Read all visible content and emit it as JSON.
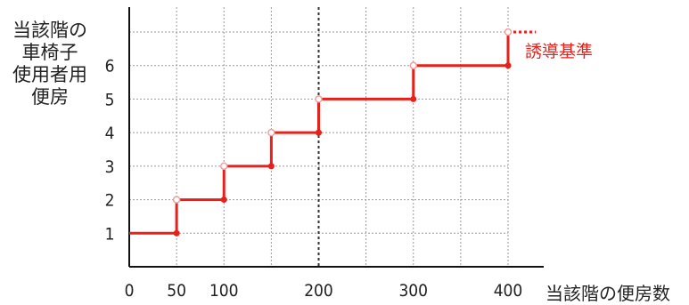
{
  "chart_data": {
    "type": "line",
    "ylabel_lines": [
      "当該階の",
      "車椅子",
      "使用者用",
      "便房"
    ],
    "xlabel": "当該階の便房数",
    "annotation": "誘導基準",
    "xticks": [
      0,
      50,
      100,
      200,
      300,
      400
    ],
    "xgrid": [
      0,
      50,
      100,
      150,
      200,
      250,
      300,
      350,
      400
    ],
    "yticks": [
      1,
      2,
      3,
      4,
      5,
      6
    ],
    "xlim": [
      0,
      400
    ],
    "ylim": [
      0,
      7
    ],
    "steps": [
      {
        "x0": 0,
        "x1": 50,
        "y": 1
      },
      {
        "x0": 50,
        "x1": 100,
        "y": 2
      },
      {
        "x0": 100,
        "x1": 150,
        "y": 3
      },
      {
        "x0": 150,
        "x1": 200,
        "y": 4
      },
      {
        "x0": 200,
        "x1": 300,
        "y": 5
      },
      {
        "x0": 300,
        "x1": 400,
        "y": 6
      }
    ],
    "guide_level": {
      "x0": 400,
      "x1": 420,
      "y": 7
    },
    "emphasized_x": 200,
    "series_color": "#e8201a"
  }
}
